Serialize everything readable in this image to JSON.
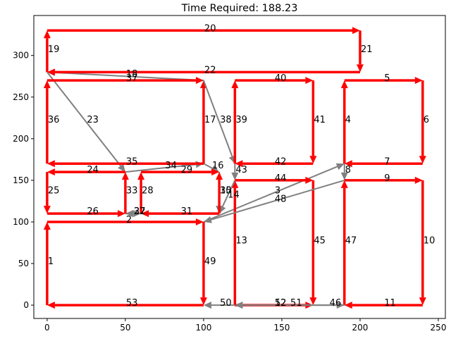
{
  "chart_data": {
    "type": "arrows",
    "title": "Time Required: 188.23",
    "xlim": [
      -8.5,
      254.5
    ],
    "ylim": [
      -16,
      348
    ],
    "xticks": [
      0,
      50,
      100,
      150,
      200,
      250
    ],
    "yticks": [
      0,
      50,
      100,
      150,
      200,
      250,
      300
    ],
    "segments": [
      {
        "label": "1",
        "from": [
          0,
          0
        ],
        "to": [
          0,
          100
        ],
        "color": "#ff0000"
      },
      {
        "label": "2",
        "from": [
          0,
          100
        ],
        "to": [
          100,
          100
        ],
        "color": "#ff0000"
      },
      {
        "label": "3",
        "from": [
          100,
          100
        ],
        "to": [
          190,
          170
        ],
        "color": "#808080"
      },
      {
        "label": "4",
        "from": [
          190,
          170
        ],
        "to": [
          190,
          270
        ],
        "color": "#ff0000"
      },
      {
        "label": "5",
        "from": [
          190,
          270
        ],
        "to": [
          240,
          270
        ],
        "color": "#ff0000"
      },
      {
        "label": "6",
        "from": [
          240,
          270
        ],
        "to": [
          240,
          170
        ],
        "color": "#ff0000"
      },
      {
        "label": "7",
        "from": [
          240,
          170
        ],
        "to": [
          190,
          170
        ],
        "color": "#ff0000"
      },
      {
        "label": "8",
        "from": [
          190,
          170
        ],
        "to": [
          190,
          150
        ],
        "color": "#808080"
      },
      {
        "label": "9",
        "from": [
          190,
          150
        ],
        "to": [
          240,
          150
        ],
        "color": "#ff0000"
      },
      {
        "label": "10",
        "from": [
          240,
          150
        ],
        "to": [
          240,
          0
        ],
        "color": "#ff0000"
      },
      {
        "label": "11",
        "from": [
          240,
          0
        ],
        "to": [
          190,
          0
        ],
        "color": "#ff0000"
      },
      {
        "label": "12",
        "from": [
          120,
          0
        ],
        "to": [
          170,
          0
        ],
        "color": "#ff0000"
      },
      {
        "label": "13",
        "from": [
          120,
          0
        ],
        "to": [
          120,
          150
        ],
        "color": "#ff0000"
      },
      {
        "label": "14",
        "from": [
          120,
          150
        ],
        "to": [
          110,
          110
        ],
        "color": "#808080"
      },
      {
        "label": "15",
        "from": [
          110,
          160
        ],
        "to": [
          110,
          110
        ],
        "color": "#808080"
      },
      {
        "label": "16",
        "from": [
          100,
          170
        ],
        "to": [
          110,
          160
        ],
        "color": "#808080"
      },
      {
        "label": "17",
        "from": [
          100,
          170
        ],
        "to": [
          100,
          270
        ],
        "color": "#ff0000"
      },
      {
        "label": "18",
        "from": [
          100,
          270
        ],
        "to": [
          0,
          280
        ],
        "color": "#808080"
      },
      {
        "label": "19",
        "from": [
          0,
          280
        ],
        "to": [
          0,
          330
        ],
        "color": "#ff0000"
      },
      {
        "label": "20",
        "from": [
          0,
          330
        ],
        "to": [
          200,
          330
        ],
        "color": "#ff0000"
      },
      {
        "label": "21",
        "from": [
          200,
          330
        ],
        "to": [
          200,
          280
        ],
        "color": "#ff0000"
      },
      {
        "label": "22",
        "from": [
          200,
          280
        ],
        "to": [
          0,
          280
        ],
        "color": "#ff0000"
      },
      {
        "label": "23",
        "from": [
          0,
          280
        ],
        "to": [
          50,
          160
        ],
        "color": "#808080"
      },
      {
        "label": "24",
        "from": [
          50,
          160
        ],
        "to": [
          0,
          160
        ],
        "color": "#ff0000"
      },
      {
        "label": "25",
        "from": [
          0,
          160
        ],
        "to": [
          0,
          110
        ],
        "color": "#ff0000"
      },
      {
        "label": "26",
        "from": [
          0,
          110
        ],
        "to": [
          50,
          110
        ],
        "color": "#ff0000"
      },
      {
        "label": "27",
        "from": [
          50,
          110
        ],
        "to": [
          60,
          110
        ],
        "color": "#808080"
      },
      {
        "label": "28",
        "from": [
          60,
          110
        ],
        "to": [
          60,
          160
        ],
        "color": "#ff0000"
      },
      {
        "label": "29",
        "from": [
          60,
          160
        ],
        "to": [
          110,
          160
        ],
        "color": "#ff0000"
      },
      {
        "label": "30",
        "from": [
          110,
          110
        ],
        "to": [
          110,
          160
        ],
        "color": "#ff0000"
      },
      {
        "label": "31",
        "from": [
          110,
          110
        ],
        "to": [
          60,
          110
        ],
        "color": "#ff0000"
      },
      {
        "label": "32",
        "from": [
          60,
          110
        ],
        "to": [
          50,
          110
        ],
        "color": "#808080"
      },
      {
        "label": "33",
        "from": [
          50,
          110
        ],
        "to": [
          50,
          160
        ],
        "color": "#ff0000"
      },
      {
        "label": "34",
        "from": [
          50,
          160
        ],
        "to": [
          100,
          170
        ],
        "color": "#808080"
      },
      {
        "label": "35",
        "from": [
          100,
          170
        ],
        "to": [
          0,
          170
        ],
        "color": "#ff0000"
      },
      {
        "label": "36",
        "from": [
          0,
          170
        ],
        "to": [
          0,
          270
        ],
        "color": "#ff0000"
      },
      {
        "label": "37",
        "from": [
          0,
          270
        ],
        "to": [
          100,
          270
        ],
        "color": "#ff0000"
      },
      {
        "label": "38",
        "from": [
          100,
          270
        ],
        "to": [
          120,
          170
        ],
        "color": "#808080"
      },
      {
        "label": "39",
        "from": [
          120,
          170
        ],
        "to": [
          120,
          270
        ],
        "color": "#ff0000"
      },
      {
        "label": "40",
        "from": [
          120,
          270
        ],
        "to": [
          170,
          270
        ],
        "color": "#ff0000"
      },
      {
        "label": "41",
        "from": [
          170,
          270
        ],
        "to": [
          170,
          170
        ],
        "color": "#ff0000"
      },
      {
        "label": "42",
        "from": [
          170,
          170
        ],
        "to": [
          120,
          170
        ],
        "color": "#ff0000"
      },
      {
        "label": "43",
        "from": [
          120,
          170
        ],
        "to": [
          120,
          150
        ],
        "color": "#808080"
      },
      {
        "label": "44",
        "from": [
          120,
          150
        ],
        "to": [
          170,
          150
        ],
        "color": "#ff0000"
      },
      {
        "label": "45",
        "from": [
          170,
          150
        ],
        "to": [
          170,
          0
        ],
        "color": "#ff0000"
      },
      {
        "label": "46",
        "from": [
          170,
          0
        ],
        "to": [
          190,
          0
        ],
        "color": "#808080"
      },
      {
        "label": "47",
        "from": [
          190,
          0
        ],
        "to": [
          190,
          150
        ],
        "color": "#ff0000"
      },
      {
        "label": "48",
        "from": [
          190,
          150
        ],
        "to": [
          100,
          100
        ],
        "color": "#808080"
      },
      {
        "label": "49",
        "from": [
          100,
          100
        ],
        "to": [
          100,
          0
        ],
        "color": "#ff0000"
      },
      {
        "label": "50",
        "from": [
          120,
          0
        ],
        "to": [
          100,
          0
        ],
        "color": "#808080"
      },
      {
        "label": "51",
        "from": [
          190,
          0
        ],
        "to": [
          120,
          0
        ],
        "color": "#808080"
      },
      {
        "label": "52",
        "from": [
          170,
          0
        ],
        "to": [
          120,
          0
        ],
        "color": "#808080"
      },
      {
        "label": "53",
        "from": [
          100,
          0
        ],
        "to": [
          0,
          0
        ],
        "color": "#ff0000"
      }
    ]
  }
}
